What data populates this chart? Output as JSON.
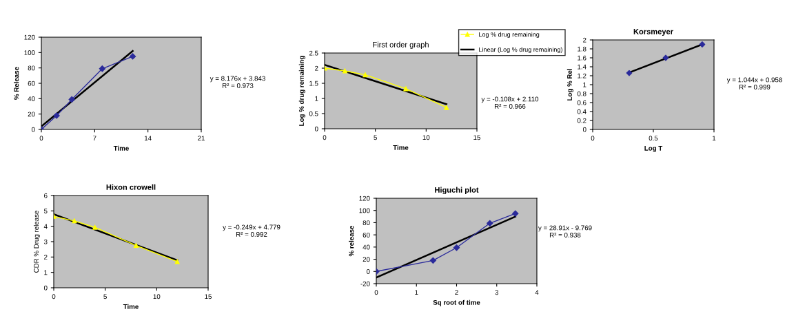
{
  "chart_data": [
    {
      "type": "line",
      "xlabel": "Time",
      "ylabel": "% Release",
      "xlim": [
        0,
        21
      ],
      "xticks": [
        0,
        7,
        14,
        21
      ],
      "ylim": [
        0,
        120
      ],
      "yticks": [
        0,
        20,
        40,
        60,
        80,
        100,
        120
      ],
      "grid": false,
      "legend": false,
      "series": [
        {
          "color": "#2b2b9b",
          "marker": "diamond",
          "x": [
            0,
            2,
            4,
            8,
            12
          ],
          "values": [
            0,
            18,
            39,
            79,
            95
          ]
        },
        {
          "color": "#000000",
          "marker": "none",
          "x": [
            0,
            12
          ],
          "values": [
            4,
            102
          ]
        }
      ],
      "annotations": [
        "y = 8.176x + 3.843",
        "R² = 0.973"
      ]
    },
    {
      "type": "line",
      "title": "First order graph",
      "xlabel": "Time",
      "ylabel": "Log % drug remaining",
      "xlim": [
        0,
        15
      ],
      "xticks": [
        0,
        5,
        10,
        15
      ],
      "ylim": [
        0,
        2.5
      ],
      "yticks": [
        0,
        0.5,
        1,
        1.5,
        2,
        2.5
      ],
      "grid": false,
      "legend": "top right",
      "series": [
        {
          "name": "Log % drug remaining",
          "color": "#ffff00",
          "marker": "triangle",
          "x": [
            0,
            2,
            4,
            8,
            12
          ],
          "values": [
            2.0,
            1.91,
            1.78,
            1.32,
            0.7
          ]
        },
        {
          "name": "Linear (Log % drug remaining)",
          "color": "#000000",
          "marker": "none",
          "x": [
            0,
            12
          ],
          "values": [
            2.11,
            0.81
          ]
        }
      ],
      "annotations": [
        "y = -0.108x + 2.110",
        "R² = 0.966"
      ]
    },
    {
      "type": "line",
      "title": "Korsmeyer",
      "xlabel": "Log T",
      "ylabel": "Log % Rel",
      "xlim": [
        0,
        1
      ],
      "xticks": [
        0,
        0.5,
        1
      ],
      "ylim": [
        0,
        2
      ],
      "yticks": [
        0,
        0.2,
        0.4,
        0.6,
        0.8,
        1,
        1.2,
        1.4,
        1.6,
        1.8,
        2
      ],
      "grid": false,
      "legend": false,
      "series": [
        {
          "type": "scatter",
          "color": "#2b2b9b",
          "marker": "diamond",
          "x": [
            0.301,
            0.602,
            0.903
          ],
          "values": [
            1.26,
            1.6,
            1.9
          ]
        },
        {
          "color": "#000000",
          "marker": "none",
          "x": [
            0.301,
            0.903
          ],
          "values": [
            1.27,
            1.9
          ]
        }
      ],
      "annotations": [
        "y = 1.044x + 0.958",
        "R² = 0.999"
      ]
    },
    {
      "type": "line",
      "title": "Hixon crowell",
      "xlabel": "Time",
      "ylabel": "CDR % Drug release",
      "xlim": [
        0,
        15
      ],
      "xticks": [
        0,
        5,
        10,
        15
      ],
      "ylim": [
        0,
        6
      ],
      "yticks": [
        0,
        1,
        2,
        3,
        4,
        5,
        6
      ],
      "grid": false,
      "legend": false,
      "series": [
        {
          "color": "#ffff00",
          "marker": "triangle",
          "x": [
            0,
            2,
            4,
            8,
            12
          ],
          "values": [
            4.64,
            4.35,
            3.93,
            2.75,
            1.7
          ]
        },
        {
          "color": "#000000",
          "marker": "none",
          "x": [
            0,
            12
          ],
          "values": [
            4.78,
            1.79
          ]
        }
      ],
      "annotations": [
        "y = -0.249x + 4.779",
        "R² = 0.992"
      ]
    },
    {
      "type": "line",
      "title": "Higuchi plot",
      "xlabel": "Sq root of time",
      "ylabel": "% release",
      "xlim": [
        0,
        4
      ],
      "xticks": [
        0,
        1,
        2,
        3,
        4
      ],
      "ylim": [
        -20,
        120
      ],
      "yticks": [
        -20,
        0,
        20,
        40,
        60,
        80,
        100,
        120
      ],
      "grid": false,
      "legend": false,
      "series": [
        {
          "color": "#2b2b9b",
          "marker": "diamond",
          "x": [
            0,
            1.414,
            2,
            2.828,
            3.464
          ],
          "values": [
            0,
            18,
            39,
            79,
            95
          ]
        },
        {
          "color": "#000000",
          "marker": "none",
          "x": [
            0,
            3.464
          ],
          "values": [
            -10,
            90
          ]
        }
      ],
      "annotations": [
        "y = 28.91x - 9.769",
        "R² = 0.938"
      ]
    }
  ]
}
